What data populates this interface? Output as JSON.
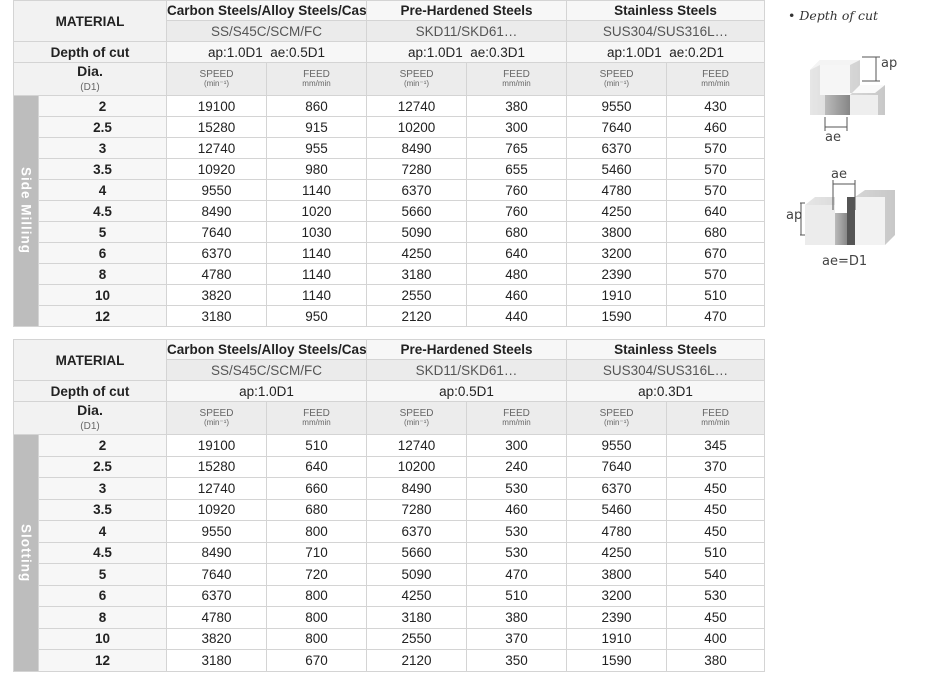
{
  "legend": {
    "title": "Depth of cut",
    "ap": "ap",
    "ae": "ae",
    "ae_d1": "ae=D1"
  },
  "headers": {
    "material": "MATERIAL",
    "depth": "Depth of cut",
    "dia": "Dia.",
    "dia_unit": "(D1)",
    "speed": "SPEED",
    "speed_unit": "(min⁻¹)",
    "feed": "FEED",
    "feed_unit": "mm/min"
  },
  "materials": [
    {
      "group": "Carbon Steels/Alloy Steels/Cast Irons",
      "grades": "SS/S45C/SCM/FC"
    },
    {
      "group": "Pre-Hardened Steels",
      "grades": "SKD11/SKD61…"
    },
    {
      "group": "Stainless Steels",
      "grades": "SUS304/SUS316L…"
    }
  ],
  "tables": [
    {
      "operation": "Side Milling",
      "depth": [
        [
          "ap:1.0D1",
          "ae:0.5D1"
        ],
        [
          "ap:1.0D1",
          "ae:0.3D1"
        ],
        [
          "ap:1.0D1",
          "ae:0.2D1"
        ]
      ],
      "rows": [
        [
          "2",
          "19100",
          "860",
          "12740",
          "380",
          "9550",
          "430"
        ],
        [
          "2.5",
          "15280",
          "915",
          "10200",
          "300",
          "7640",
          "460"
        ],
        [
          "3",
          "12740",
          "955",
          "8490",
          "765",
          "6370",
          "570"
        ],
        [
          "3.5",
          "10920",
          "980",
          "7280",
          "655",
          "5460",
          "570"
        ],
        [
          "4",
          "9550",
          "1140",
          "6370",
          "760",
          "4780",
          "570"
        ],
        [
          "4.5",
          "8490",
          "1020",
          "5660",
          "760",
          "4250",
          "640"
        ],
        [
          "5",
          "7640",
          "1030",
          "5090",
          "680",
          "3800",
          "680"
        ],
        [
          "6",
          "6370",
          "1140",
          "4250",
          "640",
          "3200",
          "670"
        ],
        [
          "8",
          "4780",
          "1140",
          "3180",
          "480",
          "2390",
          "570"
        ],
        [
          "10",
          "3820",
          "1140",
          "2550",
          "460",
          "1910",
          "510"
        ],
        [
          "12",
          "3180",
          "950",
          "2120",
          "440",
          "1590",
          "470"
        ]
      ]
    },
    {
      "operation": "Slotting",
      "depth": [
        [
          "ap:1.0D1"
        ],
        [
          "ap:0.5D1"
        ],
        [
          "ap:0.3D1"
        ]
      ],
      "rows": [
        [
          "2",
          "19100",
          "510",
          "12740",
          "300",
          "9550",
          "345"
        ],
        [
          "2.5",
          "15280",
          "640",
          "10200",
          "240",
          "7640",
          "370"
        ],
        [
          "3",
          "12740",
          "660",
          "8490",
          "530",
          "6370",
          "450"
        ],
        [
          "3.5",
          "10920",
          "680",
          "7280",
          "460",
          "5460",
          "450"
        ],
        [
          "4",
          "9550",
          "800",
          "6370",
          "530",
          "4780",
          "450"
        ],
        [
          "4.5",
          "8490",
          "710",
          "5660",
          "530",
          "4250",
          "510"
        ],
        [
          "5",
          "7640",
          "720",
          "5090",
          "470",
          "3800",
          "540"
        ],
        [
          "6",
          "6370",
          "800",
          "4250",
          "510",
          "3200",
          "530"
        ],
        [
          "8",
          "4780",
          "800",
          "3180",
          "380",
          "2390",
          "450"
        ],
        [
          "10",
          "3820",
          "800",
          "2550",
          "370",
          "1910",
          "400"
        ],
        [
          "12",
          "3180",
          "670",
          "2120",
          "350",
          "1590",
          "380"
        ]
      ]
    }
  ]
}
